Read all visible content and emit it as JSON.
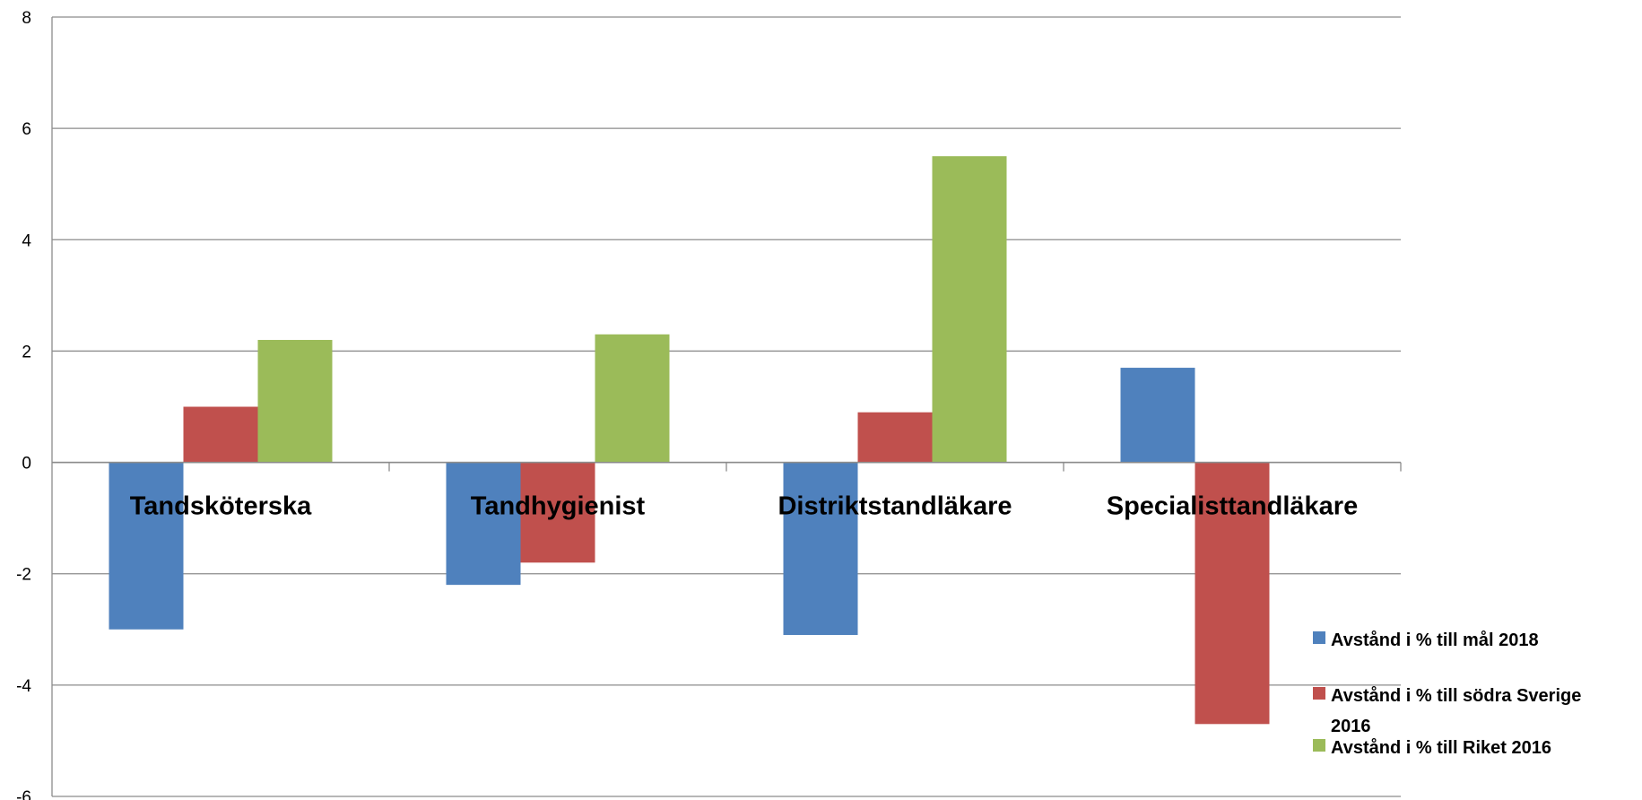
{
  "chart_data": {
    "type": "bar",
    "title": "",
    "xlabel": "",
    "ylabel": "",
    "ylim": [
      -6,
      8
    ],
    "yticks": [
      -6,
      -4,
      -2,
      0,
      2,
      4,
      6,
      8
    ],
    "grid": true,
    "legend_position": "right",
    "categories": [
      "Tandsköterska",
      "Tandhygienist",
      "Distriktstandläkare",
      "Specialisttandläkare"
    ],
    "series": [
      {
        "name": "Avstånd i % till mål 2018",
        "color": "#4F81BD",
        "values": [
          -3.0,
          -2.2,
          -3.1,
          1.7
        ]
      },
      {
        "name": "Avstånd i % till södra Sverige 2016",
        "color": "#C0504D",
        "values": [
          1.0,
          -1.8,
          0.9,
          -4.7
        ]
      },
      {
        "name": "Avstånd i % till Riket 2016",
        "color": "#9BBB59",
        "values": [
          2.2,
          2.3,
          5.5,
          null
        ]
      }
    ]
  }
}
